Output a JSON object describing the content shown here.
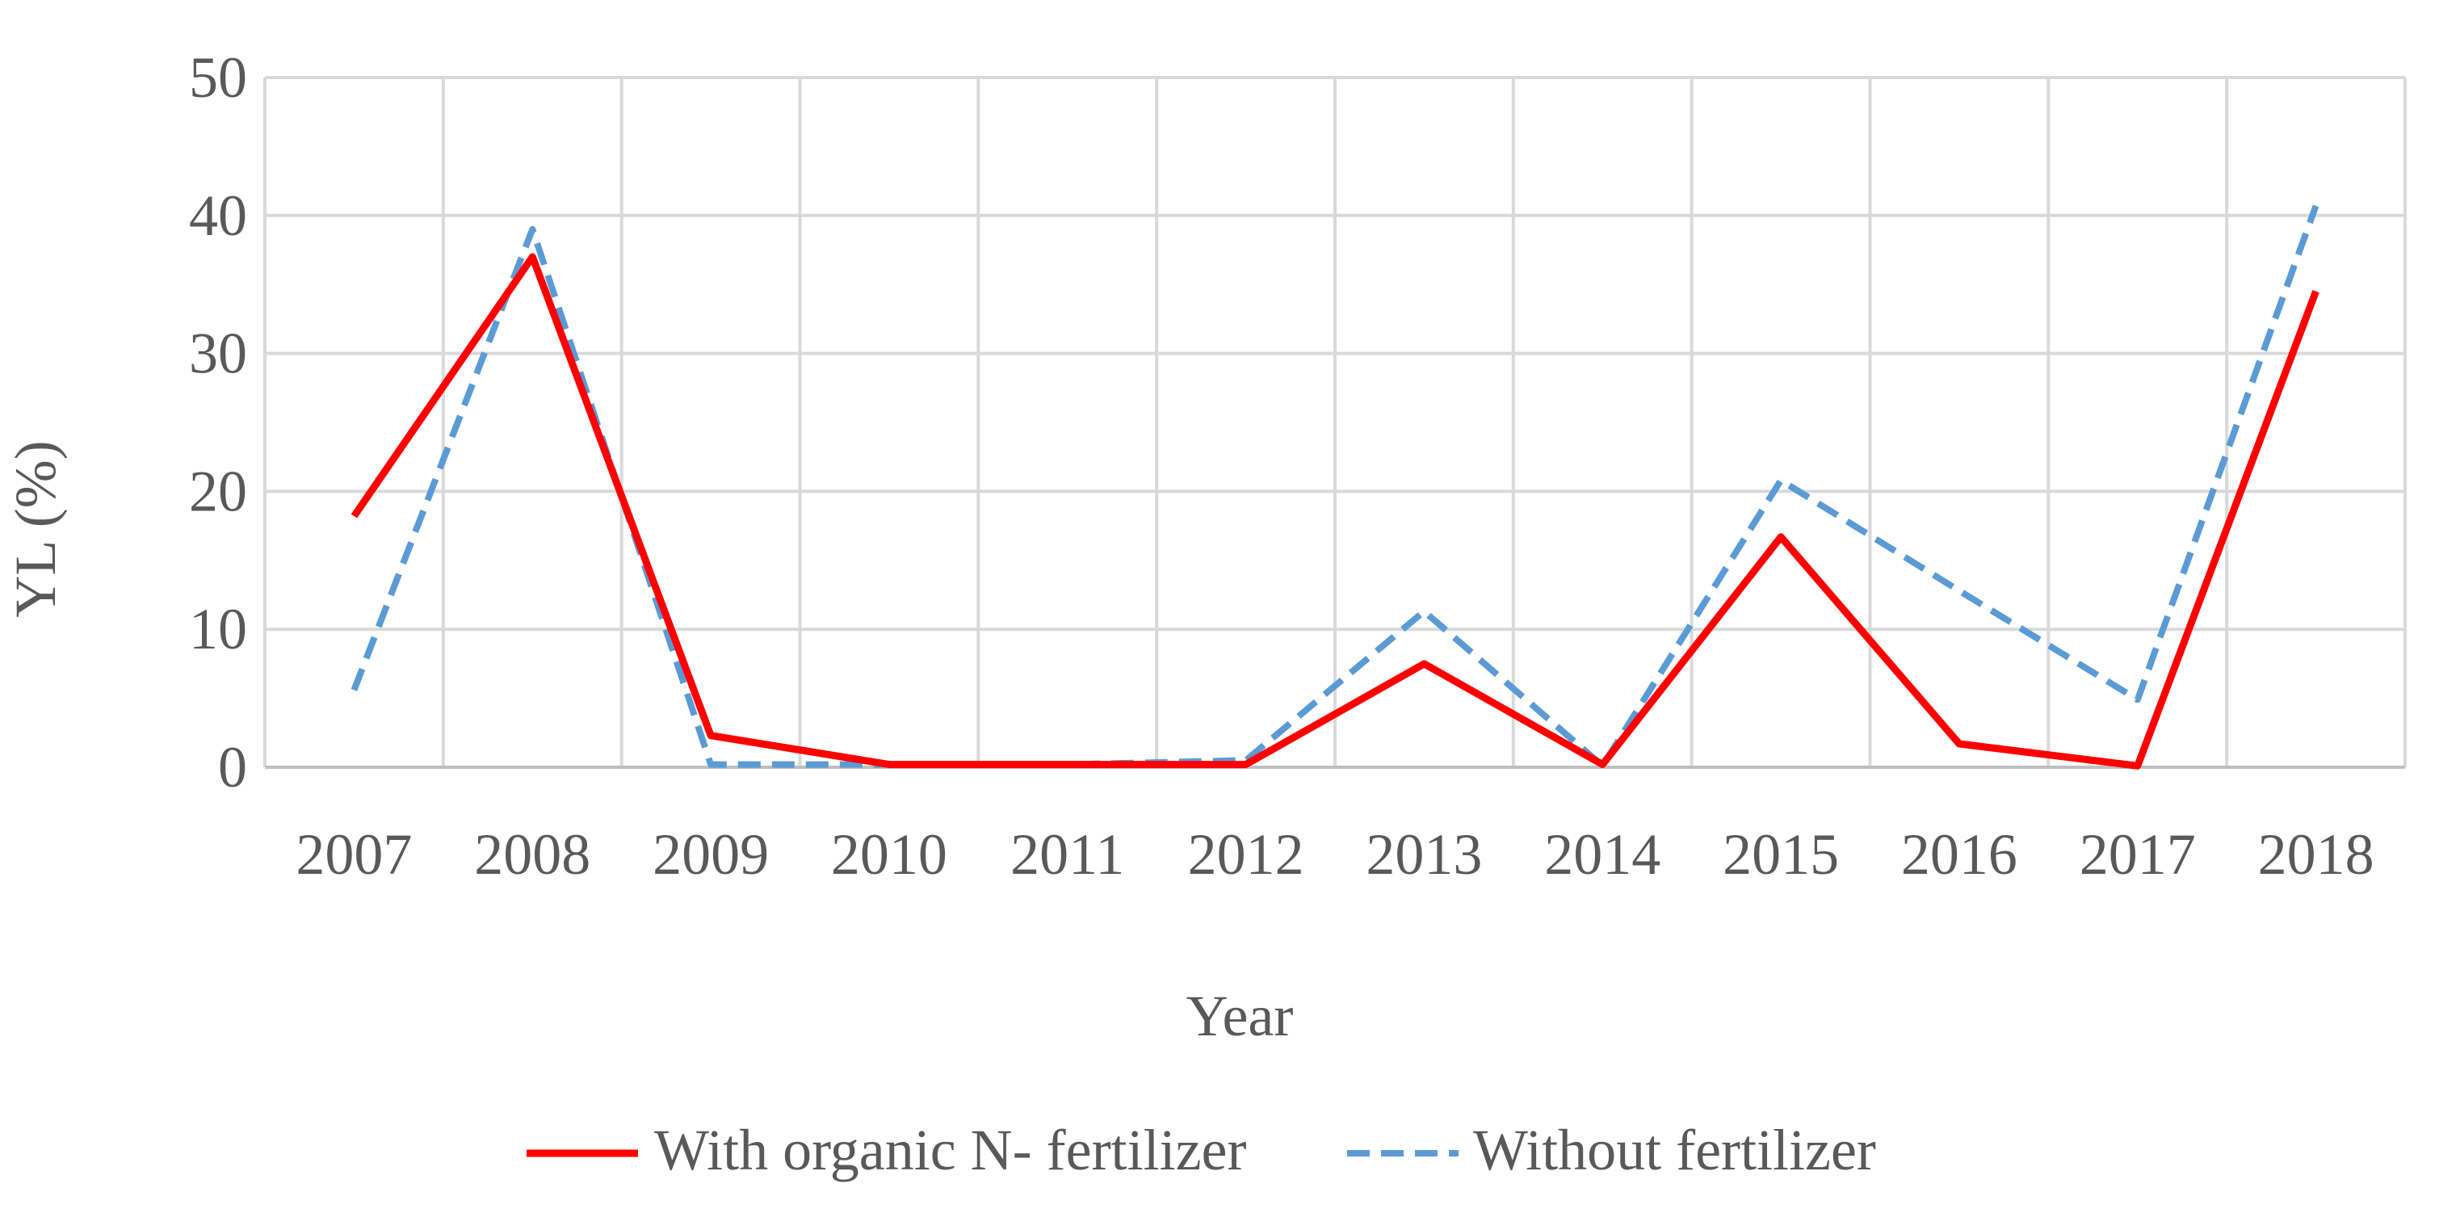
{
  "chart_data": {
    "type": "line",
    "title": "",
    "xlabel": "Year",
    "ylabel": "YL (%)",
    "ylim": [
      0,
      50
    ],
    "yticks": [
      "0",
      "10",
      "20",
      "30",
      "40",
      "50"
    ],
    "categories": [
      "2007",
      "2008",
      "2009",
      "2010",
      "2011",
      "2012",
      "2013",
      "2014",
      "2015",
      "2016",
      "2017",
      "2018"
    ],
    "grid": true,
    "legend_position": "bottom",
    "series": [
      {
        "name": "With organic N- fertilizer",
        "color": "#ff0000",
        "dashed": false,
        "values": [
          18.2,
          37.0,
          2.3,
          0.2,
          0.2,
          0.2,
          7.5,
          0.2,
          16.7,
          1.7,
          0.1,
          34.5
        ]
      },
      {
        "name": "Without fertilizer",
        "color": "#5b9bd5",
        "dashed": true,
        "values": [
          5.6,
          39.0,
          0.2,
          0.2,
          0.2,
          0.5,
          11.3,
          0.1,
          20.8,
          12.8,
          4.9,
          40.7
        ]
      }
    ]
  }
}
